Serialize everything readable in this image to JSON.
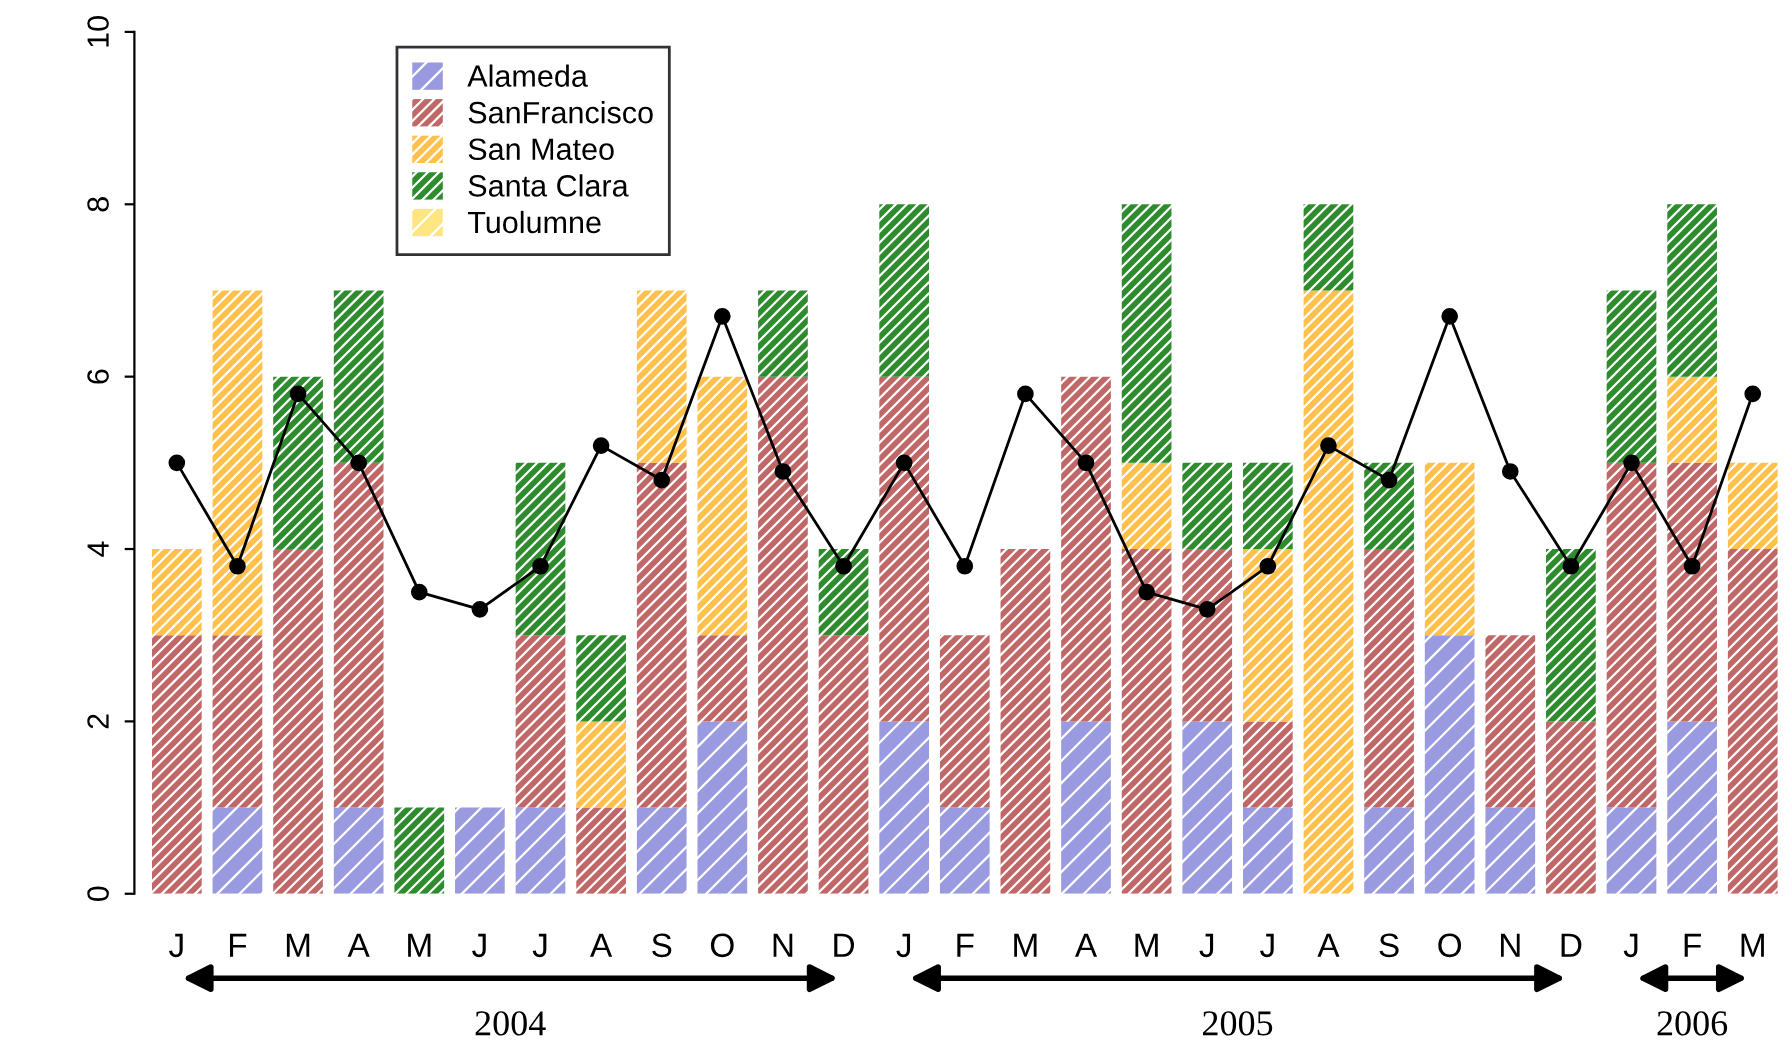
{
  "chart_data": {
    "type": "bar",
    "stacked": true,
    "categories": [
      "J",
      "F",
      "M",
      "A",
      "M",
      "J",
      "J",
      "A",
      "S",
      "O",
      "N",
      "D",
      "J",
      "F",
      "M",
      "A",
      "M",
      "J",
      "J",
      "A",
      "S",
      "O",
      "N",
      "D",
      "J",
      "F",
      "M"
    ],
    "series": [
      {
        "name": "Alameda",
        "color": "#9a9ae0",
        "values": [
          0,
          1,
          0,
          1,
          0,
          1,
          1,
          0,
          1,
          2,
          0,
          0,
          2,
          1,
          0,
          2,
          0,
          2,
          1,
          0,
          1,
          3,
          1,
          0,
          1,
          2,
          0
        ]
      },
      {
        "name": "SanFrancisco",
        "color": "#c06868",
        "values": [
          3,
          2,
          4,
          4,
          0,
          0,
          2,
          1,
          4,
          1,
          6,
          3,
          4,
          2,
          4,
          4,
          4,
          2,
          1,
          0,
          3,
          0,
          2,
          2,
          4,
          3,
          4
        ]
      },
      {
        "name": "San Mateo",
        "color": "#ffc04c",
        "values": [
          1,
          4,
          0,
          0,
          0,
          0,
          0,
          1,
          2,
          3,
          0,
          0,
          0,
          0,
          0,
          0,
          1,
          0,
          2,
          7,
          0,
          2,
          0,
          0,
          0,
          1,
          1
        ]
      },
      {
        "name": "Santa Clara",
        "color": "#2e8b2e",
        "values": [
          0,
          0,
          2,
          2,
          1,
          0,
          2,
          1,
          0,
          0,
          1,
          1,
          2,
          0,
          0,
          0,
          3,
          1,
          1,
          1,
          1,
          0,
          0,
          2,
          2,
          2,
          0
        ]
      },
      {
        "name": "Tuolumne",
        "color": "#ffe680",
        "values": [
          0,
          0,
          0,
          0,
          0,
          0,
          0,
          0,
          0,
          0,
          0,
          0,
          0,
          0,
          0,
          0,
          0,
          0,
          0,
          0,
          0,
          0,
          0,
          0,
          0,
          0,
          0
        ]
      },
      {
        "type": "line",
        "color": "#000000",
        "marker": "circle",
        "values": [
          5.0,
          3.8,
          5.8,
          5.0,
          3.5,
          3.3,
          3.8,
          5.2,
          4.8,
          6.7,
          4.9,
          3.8,
          5.0,
          3.8,
          5.8,
          5.0,
          3.5,
          3.3,
          3.8,
          5.2,
          4.8,
          6.7,
          4.9,
          3.8,
          5.0,
          3.8,
          5.8
        ]
      }
    ],
    "ylim": [
      0,
      10
    ],
    "yticks": [
      0,
      2,
      4,
      6,
      8,
      10
    ],
    "grid": false,
    "legend": "top left",
    "annotations": [
      "2004",
      "2005",
      "2006"
    ]
  }
}
